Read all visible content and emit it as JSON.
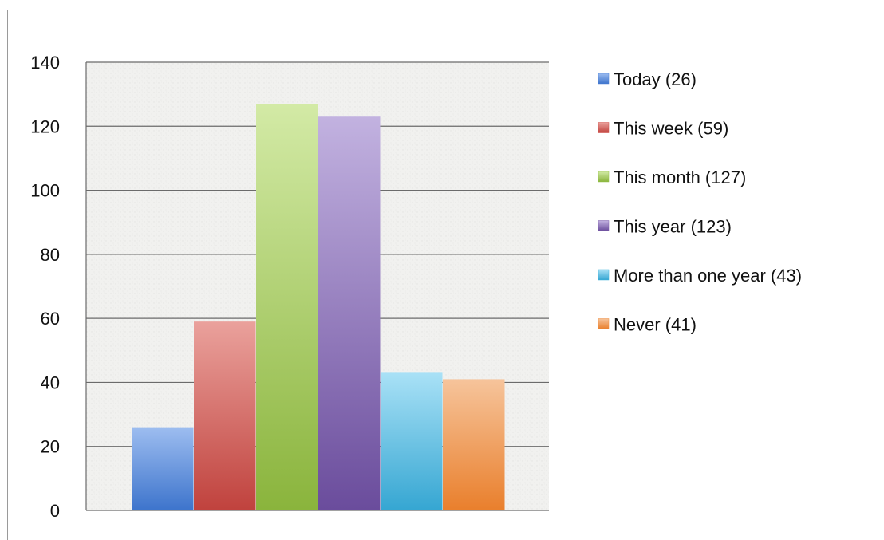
{
  "chart_data": {
    "type": "bar",
    "categories": [
      "Today",
      "This week",
      "This month",
      "This year",
      "More than one year",
      "Never"
    ],
    "values": [
      26,
      59,
      127,
      123,
      43,
      41
    ],
    "title": "",
    "xlabel": "",
    "ylabel": "",
    "ylim": [
      0,
      140
    ],
    "yticks": [
      0,
      20,
      40,
      60,
      80,
      100,
      120,
      140
    ],
    "ytick_labels": [
      "0",
      "20",
      "40",
      "60",
      "80",
      "100",
      "120",
      "140"
    ],
    "grid": true,
    "legend_position": "right",
    "legend": [
      {
        "label": "Today (26)",
        "color": "#4a7fd4"
      },
      {
        "label": "This week (59)",
        "color": "#cf4d47"
      },
      {
        "label": "This month (127)",
        "color": "#93c048"
      },
      {
        "label": "This year (123)",
        "color": "#7a5aa8"
      },
      {
        "label": "More than one year (43)",
        "color": "#3fb1dc"
      },
      {
        "label": "Never (41)",
        "color": "#ee8a3c"
      }
    ],
    "colors": [
      "#4a7fd4",
      "#cf4d47",
      "#93c048",
      "#7a5aa8",
      "#3fb1dc",
      "#ee8a3c"
    ]
  }
}
